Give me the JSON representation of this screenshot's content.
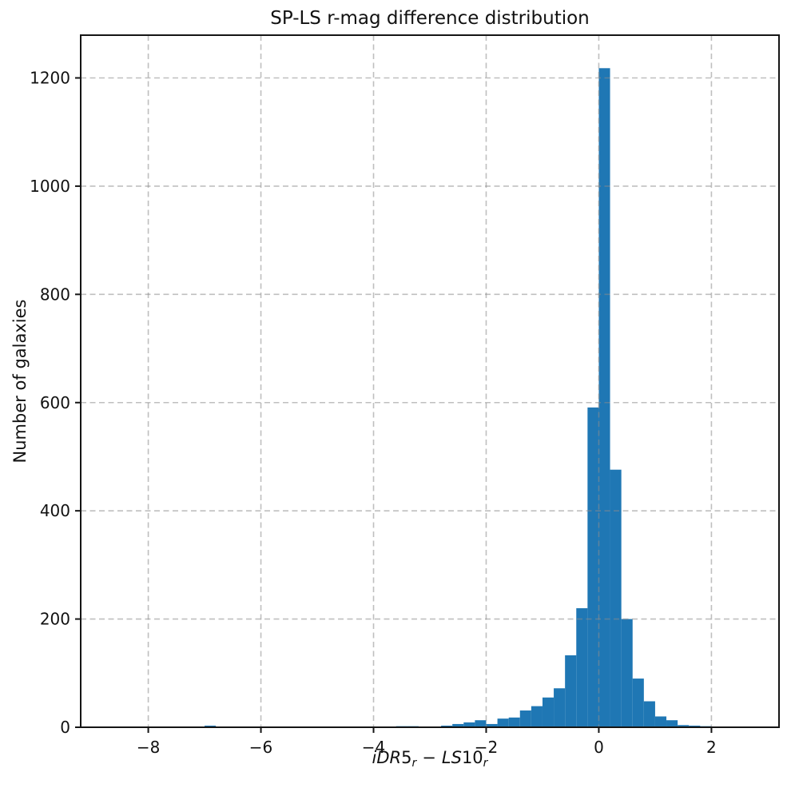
{
  "chart_data": {
    "type": "bar",
    "subtype": "histogram",
    "title": "SP-LS r-mag difference distribution",
    "xlabel": "iDR5_r - LS10_r",
    "ylabel": "Number of galaxies",
    "xlabel_parts": {
      "italic1": "iDR",
      "num1": "5",
      "sub1": "r",
      "operator": "−",
      "italic2": "LS",
      "num2": "10",
      "sub2": "r"
    },
    "bin_start": -7.0,
    "bin_width": 0.2,
    "n_bins": 45,
    "counts": [
      3,
      0,
      0,
      0,
      0,
      0,
      0,
      0,
      0,
      0,
      0,
      0,
      0,
      0,
      0,
      0,
      0,
      2,
      2,
      0,
      1,
      3,
      6,
      9,
      13,
      6,
      16,
      18,
      31,
      39,
      55,
      72,
      133,
      220,
      591,
      1218,
      476,
      200,
      90,
      48,
      20,
      13,
      4,
      3,
      2
    ],
    "xlim": [
      -9.2,
      3.2
    ],
    "ylim": [
      0,
      1279
    ],
    "xticks": [
      -8,
      -6,
      -4,
      -2,
      0,
      2
    ],
    "yticks": [
      0,
      200,
      400,
      600,
      800,
      1000,
      1200
    ],
    "grid": "dashed, both axes, drawn above bars",
    "legend": "none",
    "bar_color": "#1f77b4",
    "grid_color": "#8a8a8a",
    "axis_color": "#151515",
    "background_color": "#ffffff"
  }
}
